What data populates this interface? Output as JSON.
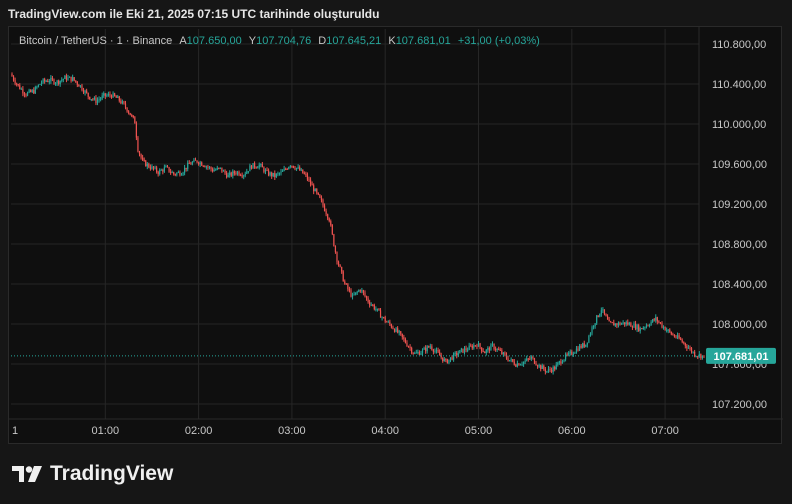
{
  "header": {
    "title": "TradingView.com ile Eki 21, 2025 07:15 UTC tarihinde oluşturuldu"
  },
  "legend": {
    "symbol": "Bitcoin / TetherUS · 1 · Binance",
    "open_label": "A",
    "open": "107.650,00",
    "high_label": "Y",
    "high": "107.704,76",
    "low_label": "D",
    "low": "107.645,21",
    "close_label": "K",
    "close": "107.681,01",
    "change": "+31,00 (+0,03%)"
  },
  "brand": {
    "name": "TradingView"
  },
  "colors": {
    "up": "#26a69a",
    "down": "#ef5350",
    "grid": "#262626",
    "last_price_badge": "#26a69a"
  },
  "chart_data": {
    "type": "candlestick",
    "yticks": [
      "110.800,00",
      "110.400,00",
      "110.000,00",
      "109.600,00",
      "109.200,00",
      "108.800,00",
      "108.400,00",
      "108.000,00",
      "107.600,00",
      "107.200,00"
    ],
    "ytick_values": [
      110800,
      110400,
      110000,
      109600,
      109200,
      108800,
      108400,
      108000,
      107600,
      107200
    ],
    "xticks": [
      "1",
      "01:00",
      "02:00",
      "03:00",
      "04:00",
      "05:00",
      "06:00",
      "07:00"
    ],
    "xtick_minutes": [
      0,
      60,
      120,
      180,
      240,
      300,
      360,
      420
    ],
    "ylim": [
      107050,
      110950
    ],
    "last_price": 107681.01,
    "last_price_label": "107.681,01",
    "price_path": [
      [
        0,
        110500
      ],
      [
        5,
        110380
      ],
      [
        10,
        110300
      ],
      [
        15,
        110330
      ],
      [
        20,
        110420
      ],
      [
        25,
        110440
      ],
      [
        30,
        110420
      ],
      [
        35,
        110460
      ],
      [
        40,
        110450
      ],
      [
        45,
        110380
      ],
      [
        50,
        110280
      ],
      [
        55,
        110230
      ],
      [
        60,
        110280
      ],
      [
        65,
        110290
      ],
      [
        70,
        110240
      ],
      [
        75,
        110150
      ],
      [
        80,
        110020
      ],
      [
        82,
        109750
      ],
      [
        85,
        109620
      ],
      [
        90,
        109570
      ],
      [
        95,
        109520
      ],
      [
        100,
        109560
      ],
      [
        105,
        109500
      ],
      [
        110,
        109520
      ],
      [
        115,
        109600
      ],
      [
        120,
        109630
      ],
      [
        125,
        109590
      ],
      [
        130,
        109540
      ],
      [
        135,
        109550
      ],
      [
        140,
        109480
      ],
      [
        145,
        109520
      ],
      [
        150,
        109500
      ],
      [
        155,
        109580
      ],
      [
        160,
        109590
      ],
      [
        165,
        109510
      ],
      [
        170,
        109480
      ],
      [
        175,
        109520
      ],
      [
        180,
        109600
      ],
      [
        185,
        109550
      ],
      [
        190,
        109480
      ],
      [
        195,
        109350
      ],
      [
        200,
        109220
      ],
      [
        205,
        109050
      ],
      [
        208,
        108800
      ],
      [
        210,
        108650
      ],
      [
        215,
        108400
      ],
      [
        220,
        108270
      ],
      [
        225,
        108350
      ],
      [
        230,
        108230
      ],
      [
        235,
        108150
      ],
      [
        240,
        108050
      ],
      [
        245,
        107980
      ],
      [
        250,
        107900
      ],
      [
        255,
        107800
      ],
      [
        260,
        107700
      ],
      [
        265,
        107730
      ],
      [
        270,
        107780
      ],
      [
        275,
        107700
      ],
      [
        280,
        107620
      ],
      [
        285,
        107680
      ],
      [
        290,
        107730
      ],
      [
        295,
        107760
      ],
      [
        300,
        107800
      ],
      [
        305,
        107720
      ],
      [
        310,
        107780
      ],
      [
        315,
        107720
      ],
      [
        320,
        107650
      ],
      [
        325,
        107600
      ],
      [
        330,
        107620
      ],
      [
        335,
        107660
      ],
      [
        340,
        107580
      ],
      [
        345,
        107530
      ],
      [
        350,
        107560
      ],
      [
        355,
        107650
      ],
      [
        360,
        107700
      ],
      [
        365,
        107760
      ],
      [
        370,
        107800
      ],
      [
        375,
        108000
      ],
      [
        380,
        108150
      ],
      [
        385,
        108000
      ],
      [
        390,
        108000
      ],
      [
        395,
        108010
      ],
      [
        400,
        107990
      ],
      [
        405,
        107950
      ],
      [
        410,
        108000
      ],
      [
        415,
        108050
      ],
      [
        420,
        107970
      ],
      [
        425,
        107900
      ],
      [
        430,
        107850
      ],
      [
        435,
        107780
      ],
      [
        440,
        107700
      ],
      [
        445,
        107681
      ]
    ]
  }
}
